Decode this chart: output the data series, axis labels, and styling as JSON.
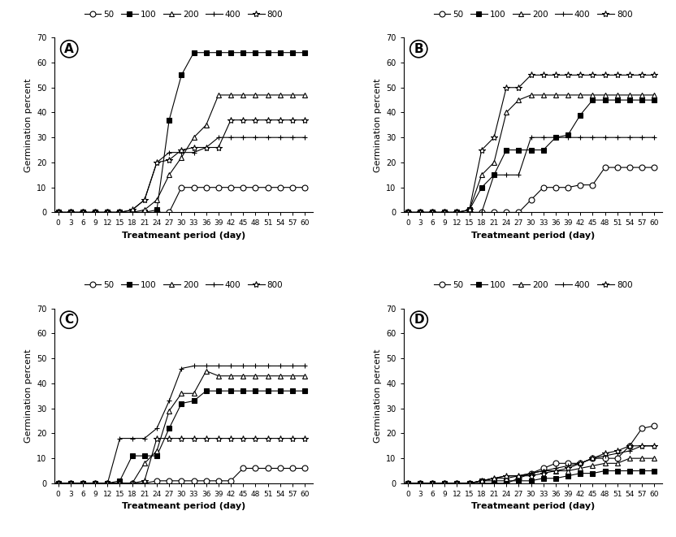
{
  "x_ticks": [
    0,
    3,
    6,
    9,
    12,
    15,
    18,
    21,
    24,
    27,
    30,
    33,
    36,
    39,
    42,
    45,
    48,
    51,
    54,
    57,
    60
  ],
  "xlabel": "Treatmeant period (day)",
  "ylabel": "Germination percent",
  "ylim": [
    0,
    70
  ],
  "yticks": [
    0,
    10,
    20,
    30,
    40,
    50,
    60,
    70
  ],
  "panel_keys": [
    "A",
    "B",
    "C",
    "D"
  ],
  "series_order": [
    "50",
    "100",
    "200",
    "400",
    "800"
  ],
  "A": {
    "50": [
      0,
      0,
      0,
      0,
      0,
      0,
      0,
      0,
      0,
      0,
      10,
      10,
      10,
      10,
      10,
      10,
      10,
      10,
      10,
      10,
      10
    ],
    "100": [
      0,
      0,
      0,
      0,
      0,
      0,
      0,
      0,
      1,
      37,
      55,
      64,
      64,
      64,
      64,
      64,
      64,
      64,
      64,
      64,
      64
    ],
    "200": [
      0,
      0,
      0,
      0,
      0,
      0,
      0,
      1,
      5,
      15,
      22,
      30,
      35,
      47,
      47,
      47,
      47,
      47,
      47,
      47,
      47
    ],
    "400": [
      0,
      0,
      0,
      0,
      0,
      0,
      1,
      5,
      20,
      24,
      24,
      24,
      26,
      30,
      30,
      30,
      30,
      30,
      30,
      30,
      30
    ],
    "800": [
      0,
      0,
      0,
      0,
      0,
      0,
      1,
      5,
      20,
      21,
      25,
      26,
      26,
      26,
      37,
      37,
      37,
      37,
      37,
      37,
      37
    ]
  },
  "B": {
    "50": [
      0,
      0,
      0,
      0,
      0,
      0,
      0,
      0,
      0,
      0,
      5,
      10,
      10,
      10,
      11,
      11,
      18,
      18,
      18,
      18,
      18
    ],
    "100": [
      0,
      0,
      0,
      0,
      0,
      1,
      10,
      15,
      25,
      25,
      25,
      25,
      30,
      31,
      39,
      45,
      45,
      45,
      45,
      45,
      45
    ],
    "200": [
      0,
      0,
      0,
      0,
      0,
      1,
      15,
      20,
      40,
      45,
      47,
      47,
      47,
      47,
      47,
      47,
      47,
      47,
      47,
      47,
      47
    ],
    "400": [
      0,
      0,
      0,
      0,
      0,
      0,
      0,
      15,
      15,
      15,
      30,
      30,
      30,
      30,
      30,
      30,
      30,
      30,
      30,
      30,
      30
    ],
    "800": [
      0,
      0,
      0,
      0,
      0,
      1,
      25,
      30,
      50,
      50,
      55,
      55,
      55,
      55,
      55,
      55,
      55,
      55,
      55,
      55,
      55
    ]
  },
  "C": {
    "50": [
      0,
      0,
      0,
      0,
      0,
      0,
      0,
      0,
      1,
      1,
      1,
      1,
      1,
      1,
      1,
      6,
      6,
      6,
      6,
      6,
      6
    ],
    "100": [
      0,
      0,
      0,
      0,
      0,
      1,
      11,
      11,
      11,
      22,
      32,
      33,
      37,
      37,
      37,
      37,
      37,
      37,
      37,
      37,
      37
    ],
    "200": [
      0,
      0,
      0,
      0,
      0,
      0,
      0,
      8,
      13,
      29,
      36,
      36,
      45,
      43,
      43,
      43,
      43,
      43,
      43,
      43,
      43
    ],
    "400": [
      0,
      0,
      0,
      0,
      0,
      18,
      18,
      18,
      22,
      33,
      46,
      47,
      47,
      47,
      47,
      47,
      47,
      47,
      47,
      47,
      47
    ],
    "800": [
      0,
      0,
      0,
      0,
      0,
      0,
      0,
      1,
      18,
      18,
      18,
      18,
      18,
      18,
      18,
      18,
      18,
      18,
      18,
      18,
      18
    ]
  },
  "D": {
    "50": [
      0,
      0,
      0,
      0,
      0,
      0,
      0,
      0,
      0,
      2,
      4,
      6,
      8,
      8,
      8,
      10,
      10,
      10,
      15,
      22,
      23
    ],
    "100": [
      0,
      0,
      0,
      0,
      0,
      0,
      1,
      1,
      1,
      1,
      1,
      2,
      2,
      3,
      4,
      4,
      5,
      5,
      5,
      5,
      5
    ],
    "200": [
      0,
      0,
      0,
      0,
      0,
      0,
      1,
      2,
      2,
      3,
      4,
      5,
      5,
      5,
      6,
      7,
      8,
      8,
      10,
      10,
      10
    ],
    "400": [
      0,
      0,
      0,
      0,
      0,
      0,
      1,
      2,
      3,
      3,
      4,
      5,
      6,
      7,
      8,
      10,
      11,
      12,
      13,
      15,
      15
    ],
    "800": [
      0,
      0,
      0,
      0,
      0,
      0,
      1,
      2,
      3,
      3,
      3,
      4,
      5,
      6,
      8,
      10,
      12,
      13,
      15,
      15,
      15
    ]
  },
  "marker_map": {
    "50": {
      "marker": "o",
      "markerfacecolor": "white",
      "markeredgecolor": "black",
      "markersize": 5
    },
    "100": {
      "marker": "s",
      "markerfacecolor": "black",
      "markeredgecolor": "black",
      "markersize": 5
    },
    "200": {
      "marker": "^",
      "markerfacecolor": "white",
      "markeredgecolor": "black",
      "markersize": 5
    },
    "400": {
      "marker": "+",
      "markerfacecolor": "black",
      "markeredgecolor": "black",
      "markersize": 5
    },
    "800": {
      "marker": "*",
      "markerfacecolor": "white",
      "markeredgecolor": "black",
      "markersize": 6
    }
  }
}
